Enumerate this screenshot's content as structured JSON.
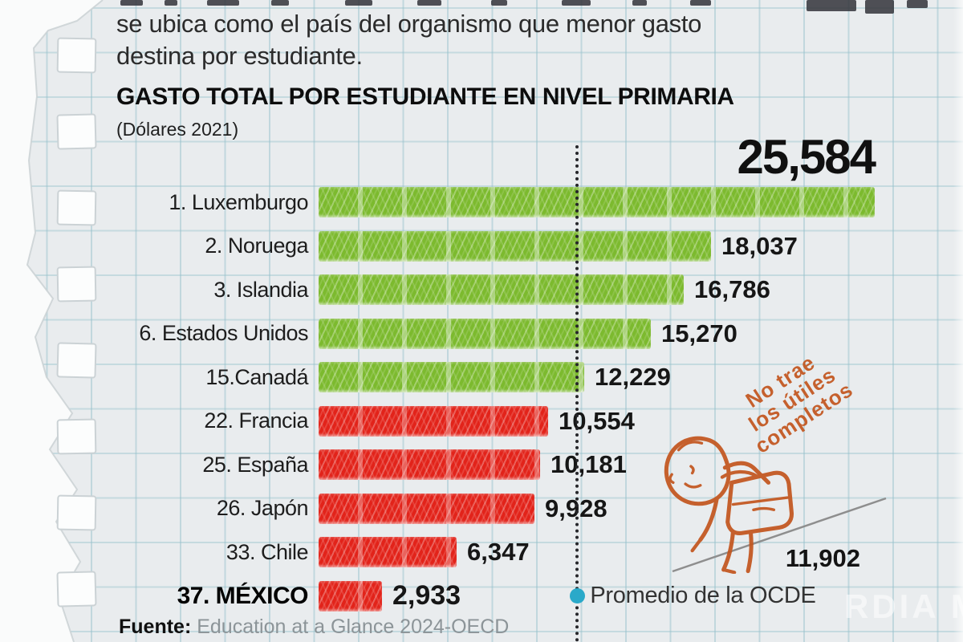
{
  "intro": {
    "line1": "se ubica como el país del organismo que menor gasto",
    "line2": "destina por estudiante."
  },
  "chart_data": {
    "type": "bar",
    "orientation": "horizontal",
    "title": "GASTO TOTAL POR ESTUDIANTE EN NIVEL PRIMARIA",
    "subtitle": "(Dólares 2021)",
    "xlim": [
      0,
      25584
    ],
    "grid": "notebook graph paper, dashed vertical reference line at OECD average",
    "categories": [
      "1. Luxemburgo",
      "2. Noruega",
      "3. Islandia",
      "6. Estados Unidos",
      "15.Canadá",
      "22. Francia",
      "25. España",
      "26. Japón",
      "33. Chile",
      "37. MÉXICO"
    ],
    "values": [
      25584,
      18037,
      16786,
      15270,
      12229,
      10554,
      10181,
      9928,
      6347,
      2933
    ],
    "bars": [
      {
        "label": "1. Luxemburgo",
        "value": 25584,
        "display": "25,584",
        "color": "green",
        "value_placement": "top"
      },
      {
        "label": "2. Noruega",
        "value": 18037,
        "display": "18,037",
        "color": "green"
      },
      {
        "label": "3. Islandia",
        "value": 16786,
        "display": "16,786",
        "color": "green"
      },
      {
        "label": "6. Estados Unidos",
        "value": 15270,
        "display": "15,270",
        "color": "green"
      },
      {
        "label": "15.Canadá",
        "value": 12229,
        "display": "12,229",
        "color": "green"
      },
      {
        "label": "22. Francia",
        "value": 10554,
        "display": "10,554",
        "color": "red"
      },
      {
        "label": "25. España",
        "value": 10181,
        "display": "10,181",
        "color": "red"
      },
      {
        "label": "26. Japón",
        "value": 9928,
        "display": "9,928",
        "color": "red"
      },
      {
        "label": "33. Chile",
        "value": 6347,
        "display": "6,347",
        "color": "red"
      },
      {
        "label": "37. MÉXICO",
        "value": 2933,
        "display": "2,933",
        "color": "red",
        "emphasis": true
      }
    ],
    "average": {
      "value": 11902,
      "display": "11,902",
      "label": "Promedio de la OCDE"
    },
    "colors": {
      "green_bar": "#7CBA2E",
      "red_bar": "#E2231A",
      "average_dot": "#2AA9C9",
      "stamp": "#C3551D"
    }
  },
  "stamp": {
    "lines": [
      "No trae",
      "los útiles",
      "completos"
    ],
    "full_text": "No trae los útiles completos"
  },
  "source": {
    "prefix": "Fuente:",
    "text": " Education at a Glance 2024-OECD"
  },
  "watermark": {
    "text": "RDIA M"
  }
}
